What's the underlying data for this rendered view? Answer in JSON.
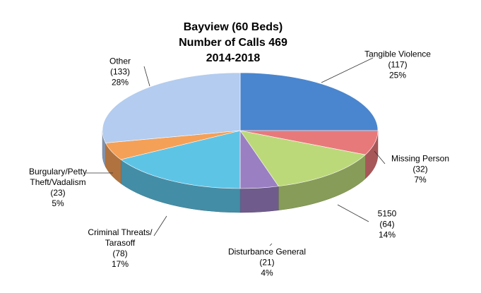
{
  "chart_data": {
    "type": "pie3d",
    "title_lines": [
      "Bayview (60 Beds)",
      "Number of Calls 469",
      "2014-2018"
    ],
    "categories": [
      "Tangible Violence",
      "Missing Person",
      "5150",
      "Disturbance General",
      "Criminal Threats/ Tarasoff",
      "Burgulary/Petty Theft/Vadalism",
      "Other"
    ],
    "values": [
      117,
      32,
      64,
      21,
      78,
      23,
      133
    ],
    "value_labels": [
      "(117)",
      "(32)",
      "(64)",
      "(21)",
      "(78)",
      "(23)",
      "(133)"
    ],
    "percent_labels": [
      "25%",
      "7%",
      "14%",
      "4%",
      "17%",
      "5%",
      "28%"
    ],
    "colors": [
      "#4a86cf",
      "#e8797a",
      "#bcd97a",
      "#9a7fc2",
      "#5ec4e6",
      "#f5a057",
      "#b3ccef"
    ]
  }
}
